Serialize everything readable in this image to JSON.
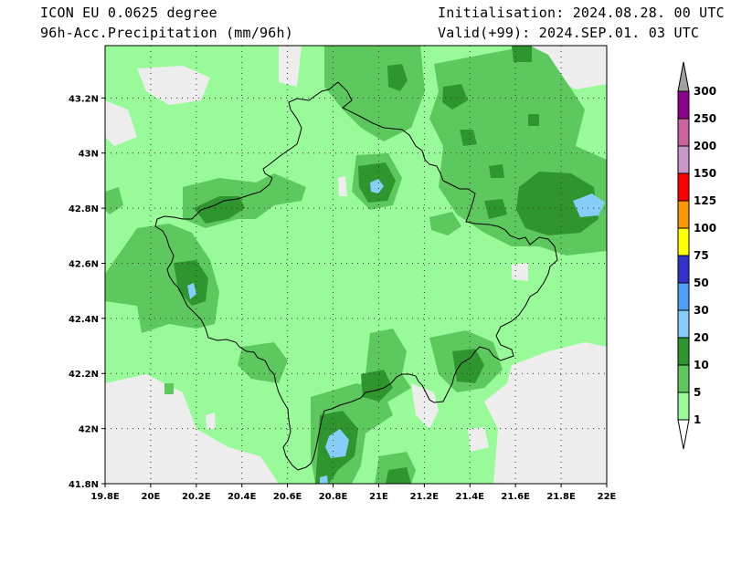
{
  "header": {
    "model": "ICON EU 0.0625 degree",
    "variable": "96h-Acc.Precipitation (mm/96h)",
    "init": "Initialisation: 2024.08.28. 00 UTC",
    "valid": "Valid(+99): 2024.SEP.01. 03 UTC"
  },
  "map": {
    "lon_ticks": [
      "19.8E",
      "20E",
      "20.2E",
      "20.4E",
      "20.6E",
      "20.8E",
      "21E",
      "21.2E",
      "21.4E",
      "21.6E",
      "21.8E",
      "22E"
    ],
    "lat_ticks": [
      "43.2N",
      "43N",
      "42.8N",
      "42.6N",
      "42.4N",
      "42.2N",
      "42N",
      "41.8N"
    ],
    "lon_values": [
      19.8,
      20.0,
      20.2,
      20.4,
      20.6,
      20.8,
      21.0,
      21.2,
      21.4,
      21.6,
      21.8,
      22.0
    ],
    "lat_values": [
      43.2,
      43.0,
      42.8,
      42.6,
      42.4,
      42.2,
      42.0,
      41.8
    ],
    "extent": {
      "lon_min": 19.8,
      "lon_max": 22.0,
      "lat_min": 41.8,
      "lat_max": 43.39
    },
    "grid": "dotted",
    "colors": {
      "dry": "#ededed",
      "c1": "#98fa98",
      "c5": "#5dc85d",
      "c10": "#2f962f",
      "c20": "#87cdfa"
    }
  },
  "colorbar": {
    "labels": [
      "300",
      "250",
      "200",
      "150",
      "125",
      "100",
      "75",
      "50",
      "30",
      "20",
      "10",
      "5",
      "1"
    ],
    "colors": [
      "#a0a0a0",
      "#8c008c",
      "#c8649b",
      "#c896c8",
      "#ff0000",
      "#ff9600",
      "#ffff00",
      "#3232c8",
      "#509ff5",
      "#87cdfa",
      "#2f962f",
      "#5dc85d",
      "#98fa98"
    ]
  }
}
